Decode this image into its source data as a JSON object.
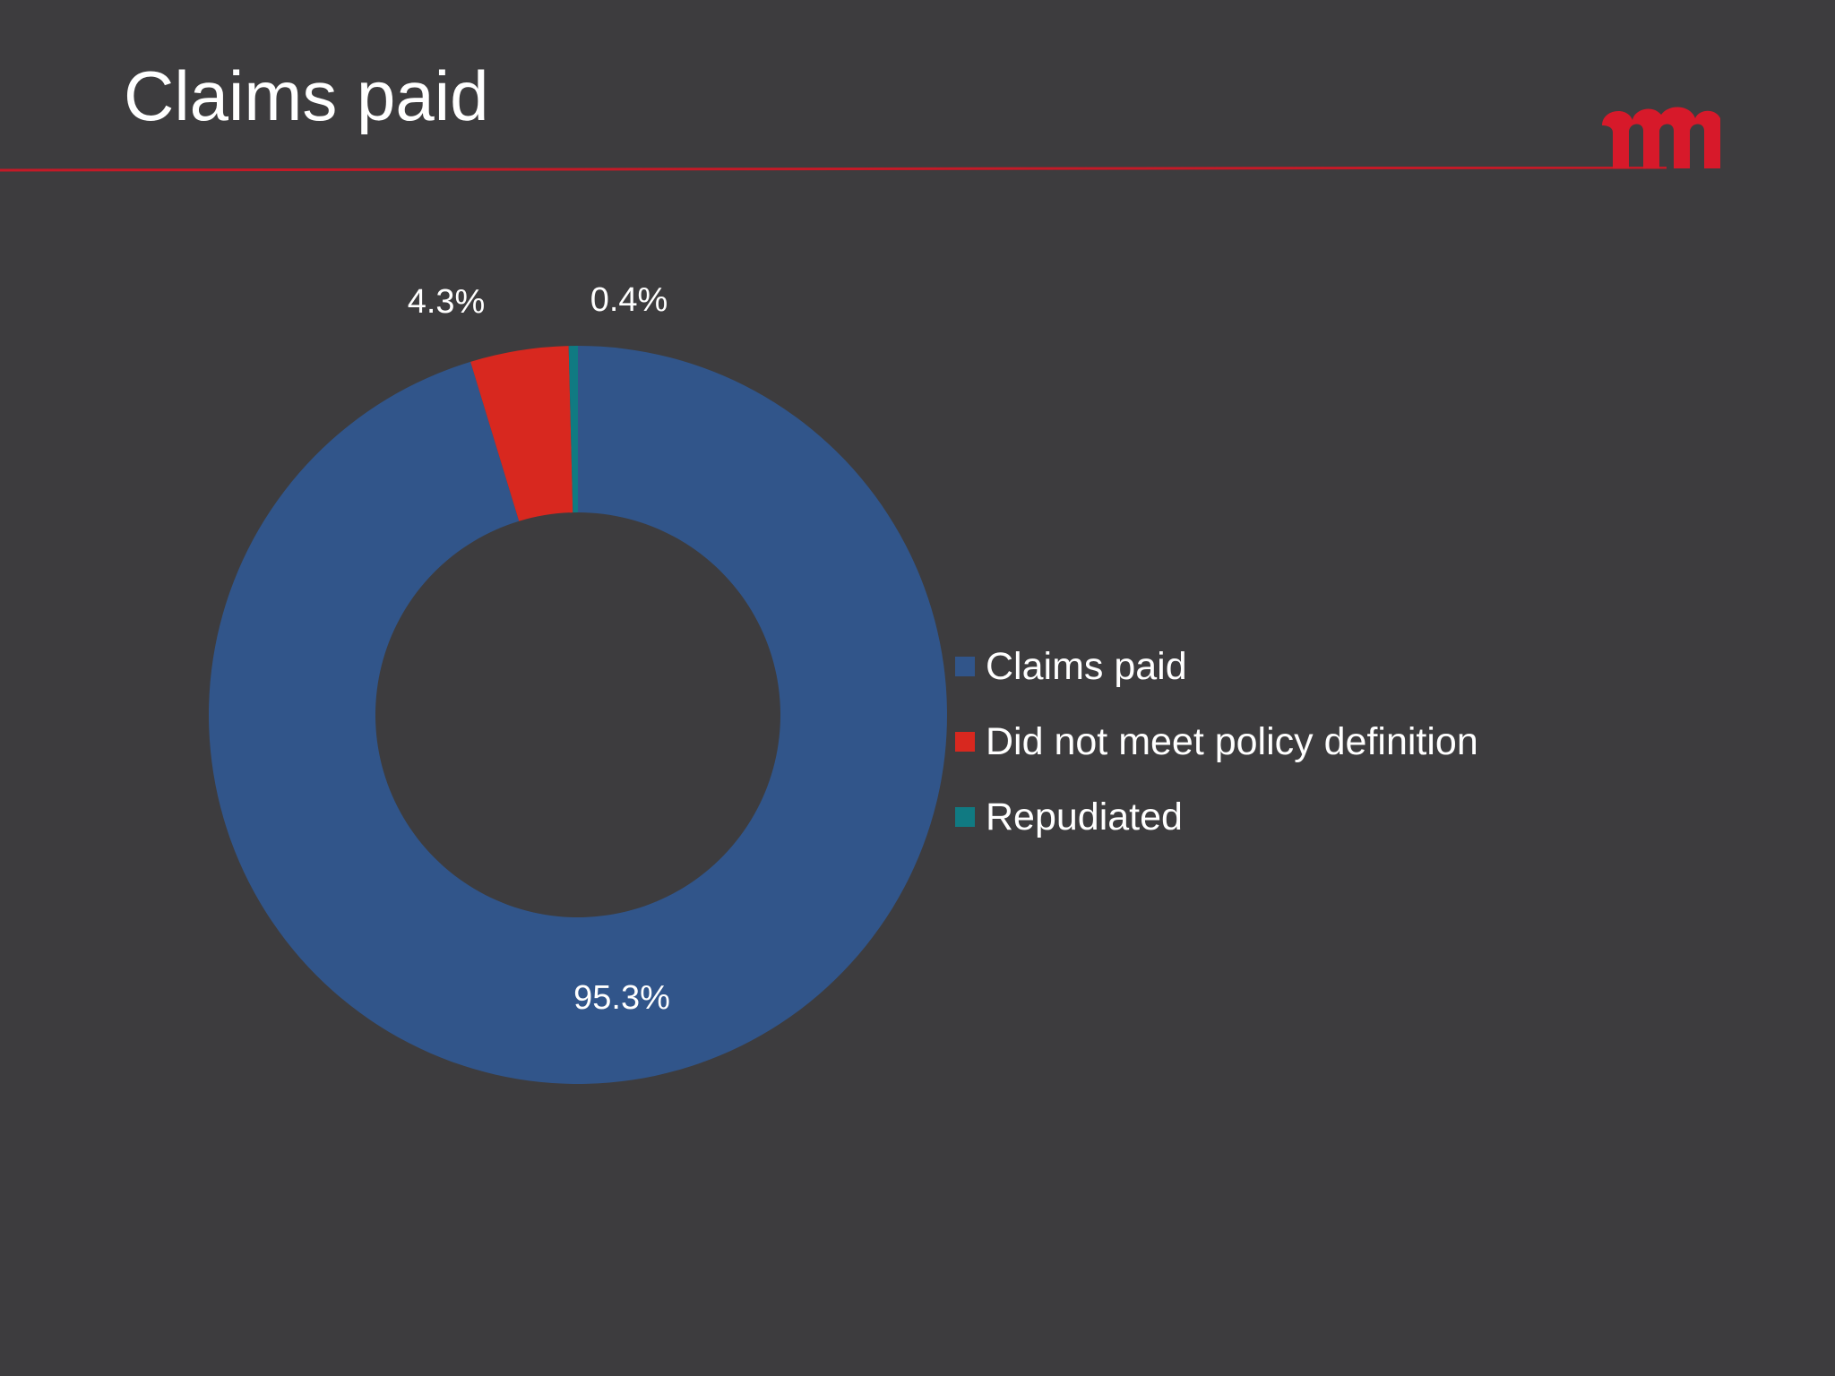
{
  "slide": {
    "title": "Claims paid",
    "background_color": "#3d3c3e",
    "accent_color": "#d7192a",
    "logo_icon": "brand-m-logo"
  },
  "chart_data": {
    "type": "pie",
    "variant": "doughnut",
    "categories": [
      "Claims paid",
      "Did not meet policy definition",
      "Repudiated"
    ],
    "values": [
      95.3,
      4.3,
      0.4
    ],
    "data_labels": [
      "95.3%",
      "4.3%",
      "0.4%"
    ],
    "colors": [
      "#31558a",
      "#d8281f",
      "#107a82"
    ],
    "legend_position": "right",
    "start_angle": "12 o'clock, clockwise"
  }
}
